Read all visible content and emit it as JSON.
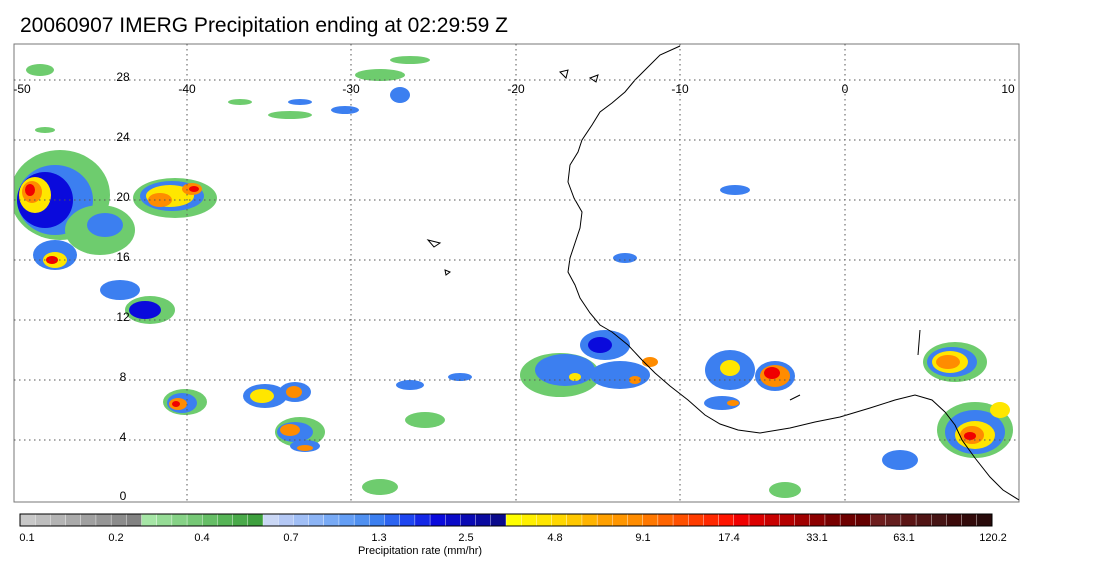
{
  "title": "20060907 IMERG Precipitation ending at 02:29:59 Z",
  "map": {
    "lon_range": [
      -50,
      10
    ],
    "lat_range": [
      -0.5,
      30
    ],
    "lon_ticks": [
      -50,
      -40,
      -30,
      -20,
      -10,
      0,
      10
    ],
    "lat_ticks": [
      0,
      4,
      8,
      12,
      16,
      20,
      24,
      28
    ],
    "lon_tick_labels": [
      "-50",
      "-40",
      "-30",
      "-20",
      "-10",
      "0",
      "10"
    ],
    "lat_tick_labels": [
      "0",
      "4",
      "8",
      "12",
      "16",
      "20",
      "24",
      "28"
    ],
    "grid": "dotted"
  },
  "colorbar": {
    "label": "Precipitation rate (mm/hr)",
    "tick_labels": [
      "0.1",
      "0.2",
      "0.4",
      "0.7",
      "1.3",
      "2.5",
      "4.8",
      "9.1",
      "17.4",
      "33.1",
      "63.1",
      "120.2"
    ],
    "colors": [
      "#c8c8c8",
      "#bebebe",
      "#b4b4b4",
      "#aaaaaa",
      "#a0a0a0",
      "#969696",
      "#8c8c8c",
      "#828282",
      "#a6e6a6",
      "#96dc96",
      "#86d286",
      "#76c876",
      "#66be66",
      "#56b456",
      "#4aaa4a",
      "#3ea03e",
      "#cad7f5",
      "#b4c8f5",
      "#a0bef5",
      "#8cb4f5",
      "#78aaf5",
      "#649ef5",
      "#5090f0",
      "#3c7ff0",
      "#2c64f0",
      "#1e46f0",
      "#1428e6",
      "#0a0adc",
      "#0a0ac8",
      "#0a0ab4",
      "#0a0aa0",
      "#0a0a8c",
      "#ffff00",
      "#fff000",
      "#ffe600",
      "#ffd700",
      "#ffc800",
      "#ffb400",
      "#ffa000",
      "#ff9600",
      "#ff8c00",
      "#ff7800",
      "#ff6400",
      "#ff5000",
      "#ff3c00",
      "#ff2800",
      "#ff1400",
      "#f00000",
      "#dc0000",
      "#c80000",
      "#b40000",
      "#a00000",
      "#8c0000",
      "#780000",
      "#6e0000",
      "#640000",
      "#6e1e1e",
      "#641e1e",
      "#5a1414",
      "#501414",
      "#461414",
      "#3c0a0a",
      "#320a0a",
      "#280a0a"
    ]
  },
  "legend_colors": {
    "light": "#6ecc6e",
    "mod": "#3c7ff0",
    "heavy": "#0a0adc",
    "yellow": "#ffe600",
    "orange": "#ff8c00",
    "red": "#f00000"
  }
}
